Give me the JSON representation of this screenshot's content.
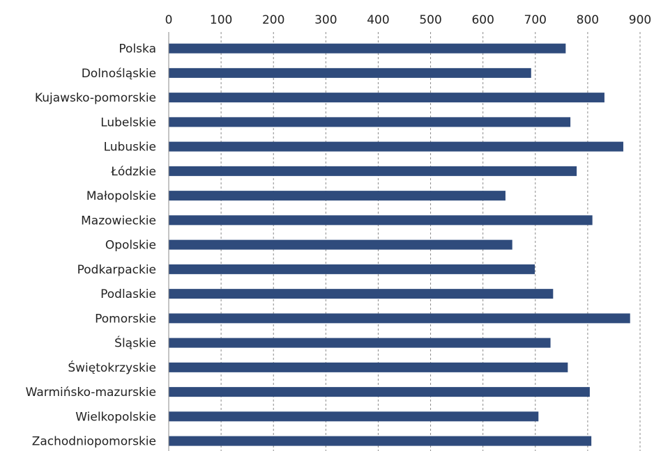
{
  "chart_data": {
    "type": "bar",
    "orientation": "horizontal",
    "categories": [
      "Polska",
      "Dolnośląskie",
      "Kujawsko-pomorskie",
      "Lubelskie",
      "Lubuskie",
      "Łódzkie",
      "Małopolskie",
      "Mazowieckie",
      "Opolskie",
      "Podkarpackie",
      "Podlaskie",
      "Pomorskie",
      "Śląskie",
      "Świętokrzyskie",
      "Warmińsko-mazurskie",
      "Wielkopolskie",
      "Zachodniopomorskie"
    ],
    "values": [
      758,
      692,
      832,
      767,
      868,
      779,
      643,
      809,
      656,
      699,
      734,
      881,
      729,
      762,
      804,
      706,
      807
    ],
    "xlim": [
      0,
      900
    ],
    "xticks": [
      0,
      100,
      200,
      300,
      400,
      500,
      600,
      700,
      800,
      900
    ],
    "x_axis_position": "top",
    "grid": "vertical-dashed",
    "legend": "none",
    "colors": {
      "bar": "#2f4b7c"
    }
  }
}
